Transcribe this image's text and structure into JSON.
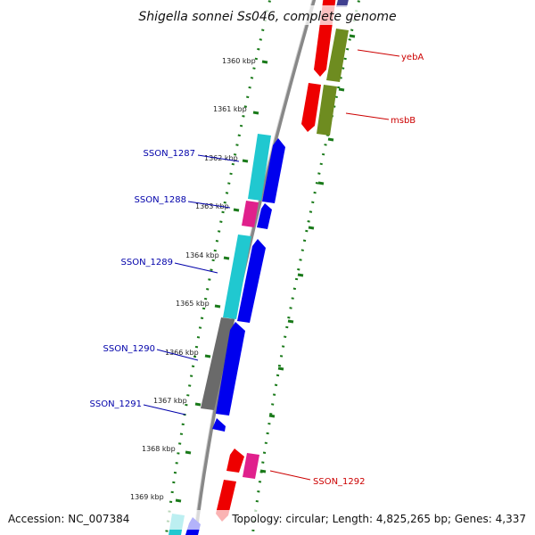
{
  "title": "Shigella sonnei Ss046, complete genome",
  "accession": "Accession: NC_007384",
  "topology": "Topology: circular; Length: 4,825,265 bp; Genes: 4,337",
  "ticks": [
    "1360 kbp",
    "1361 kbp",
    "1362 kbp",
    "1363 kbp",
    "1364 kbp",
    "1365 kbp",
    "1366 kbp",
    "1367 kbp",
    "1368 kbp",
    "1369 kbp"
  ],
  "gene_labels": [
    {
      "text": "yebA",
      "color": "#cc0000"
    },
    {
      "text": "msbB",
      "color": "#cc0000"
    },
    {
      "text": "SSON_1287",
      "color": "#0000aa"
    },
    {
      "text": "SSON_1288",
      "color": "#0000aa"
    },
    {
      "text": "SSON_1289",
      "color": "#0000aa"
    },
    {
      "text": "SSON_1290",
      "color": "#0000aa"
    },
    {
      "text": "SSON_1291",
      "color": "#0000aa"
    },
    {
      "text": "SSON_1292",
      "color": "#cc0000"
    }
  ],
  "colors": {
    "backbone": "#888888",
    "ticks": "#1a7a1a",
    "cds_forward": "#0000ee",
    "cds_cyan": "#20c8d0",
    "cds_red": "#ee0000",
    "cds_olive": "#6e8c20",
    "cds_magenta": "#e0208c",
    "cds_gray": "#6a6a6a",
    "cds_navy": "#404090"
  }
}
